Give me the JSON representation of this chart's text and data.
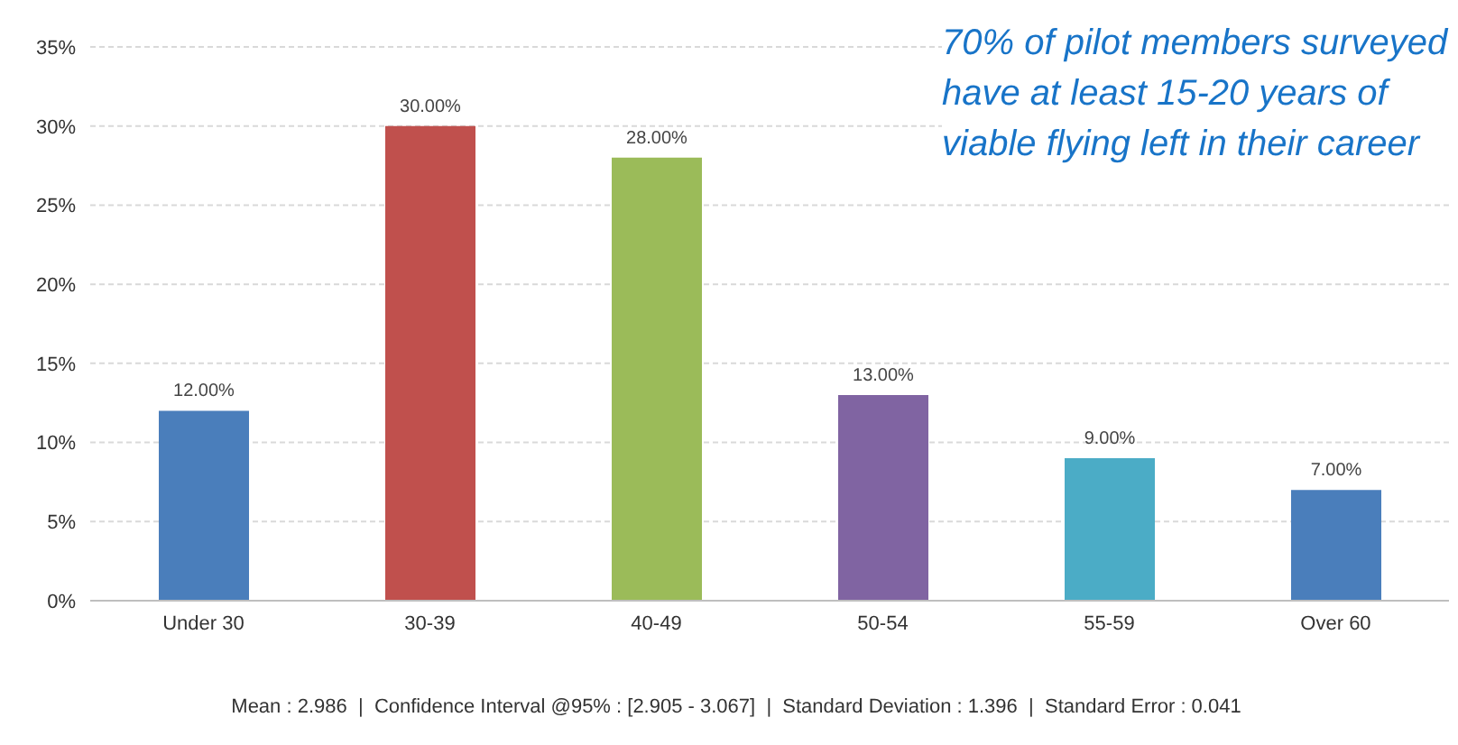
{
  "chart_data": {
    "type": "bar",
    "categories": [
      "Under 30",
      "30-39",
      "40-49",
      "50-54",
      "55-59",
      "Over 60"
    ],
    "values": [
      12,
      30,
      28,
      13,
      9,
      7
    ],
    "colors": [
      "#4a7ebb",
      "#c0504d",
      "#9bbb59",
      "#8064a2",
      "#4bacc6",
      "#4a7ebb"
    ],
    "value_labels": [
      "12.00%",
      "30.00%",
      "28.00%",
      "13.00%",
      "9.00%",
      "7.00%"
    ],
    "ylim": [
      0,
      35
    ],
    "yticks": [
      {
        "value": 0,
        "label": "0%"
      },
      {
        "value": 5,
        "label": "5%"
      },
      {
        "value": 10,
        "label": "10%"
      },
      {
        "value": 15,
        "label": "15%"
      },
      {
        "value": 20,
        "label": "20%"
      },
      {
        "value": 25,
        "label": "25%"
      },
      {
        "value": 30,
        "label": "30%"
      },
      {
        "value": 35,
        "label": "35%"
      }
    ],
    "grid": "y",
    "annotations": [
      "70% of pilot members surveyed have at least 15-20 years of viable flying left in their career",
      "Mean : 2.986  |  Confidence Interval @95% : [2.905 - 3.067]  |  Standard Deviation : 1.396  |  Standard Error : 0.041"
    ]
  }
}
